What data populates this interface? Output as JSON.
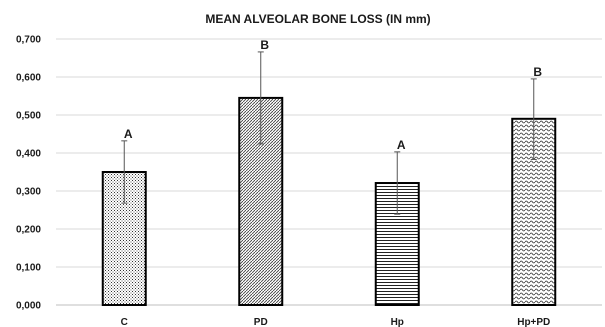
{
  "chart_data": {
    "type": "bar",
    "title": "MEAN ALVEOLAR BONE LOSS (IN mm)",
    "xlabel": "",
    "ylabel": "",
    "categories": [
      "C",
      "PD",
      "Hp",
      "Hp+PD"
    ],
    "values": [
      0.35,
      0.545,
      0.321,
      0.49
    ],
    "error_upper": [
      0.432,
      0.666,
      0.403,
      0.595
    ],
    "error_lower": [
      0.268,
      0.424,
      0.239,
      0.383
    ],
    "significance_letters": [
      "A",
      "B",
      "A",
      "B"
    ],
    "patterns": [
      "dots",
      "diagonal",
      "horizontal-lines",
      "wave"
    ],
    "ylim": [
      0,
      0.7
    ],
    "yticks": [
      "0,000",
      "0,100",
      "0,200",
      "0,300",
      "0,400",
      "0,500",
      "0,600",
      "0,700"
    ],
    "grid": true,
    "legend": "none",
    "colors": {
      "bar_outline": "#000000",
      "pattern": "#333333",
      "grid": "#d9d9d9",
      "error_bar": "#555555"
    }
  }
}
